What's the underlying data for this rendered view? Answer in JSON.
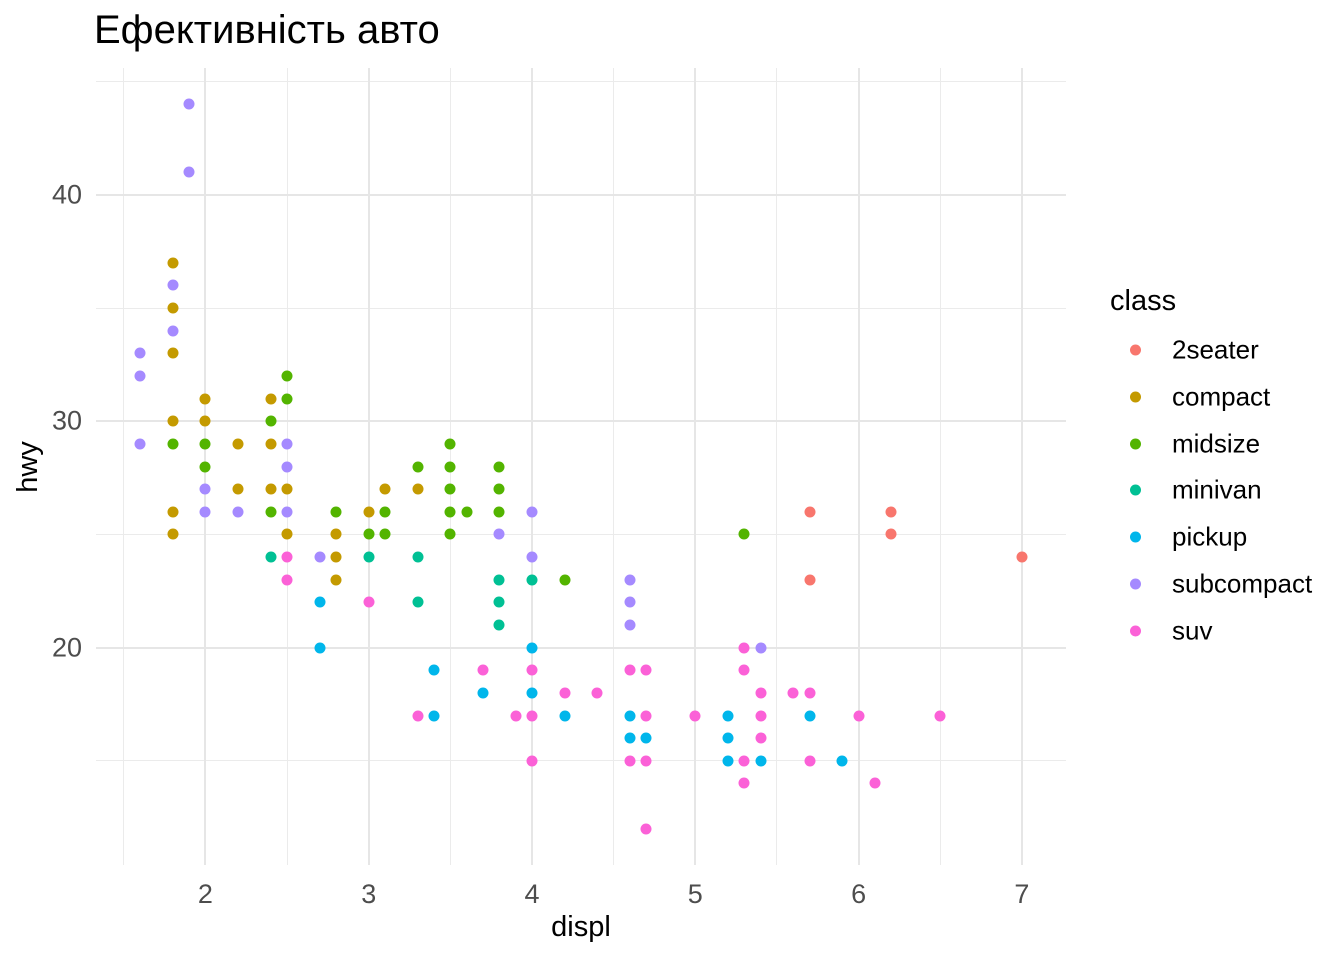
{
  "title": "Ефективність авто",
  "colors": {
    "background": "#ffffff",
    "grid_major": "#e6e6e6",
    "grid_minor": "#ebebeb",
    "axis_text": "#4d4d4d",
    "text": "#000000"
  },
  "chart_data": {
    "type": "scatter",
    "title": "Ефективність авто",
    "xlabel": "displ",
    "ylabel": "hwy",
    "xlim": [
      1.33,
      7.27
    ],
    "ylim": [
      10.4,
      45.6
    ],
    "x_major_ticks": [
      2,
      3,
      4,
      5,
      6,
      7
    ],
    "x_minor_ticks": [
      1.5,
      2.5,
      3.5,
      4.5,
      5.5,
      6.5
    ],
    "y_major_ticks": [
      20,
      30,
      40
    ],
    "y_minor_ticks": [
      15,
      25,
      35,
      45
    ],
    "grid": true,
    "legend_position": "right",
    "legend_title": "class",
    "series": [
      {
        "name": "2seater",
        "color": "#F8766D",
        "points": [
          [
            5.7,
            26
          ],
          [
            5.7,
            23
          ],
          [
            6.2,
            26
          ],
          [
            6.2,
            25
          ],
          [
            7,
            24
          ]
        ]
      },
      {
        "name": "compact",
        "color": "#C49A00",
        "points": [
          [
            1.8,
            37
          ],
          [
            1.8,
            35
          ],
          [
            1.8,
            33
          ],
          [
            1.8,
            30
          ],
          [
            1.8,
            26
          ],
          [
            1.8,
            25
          ],
          [
            2,
            31
          ],
          [
            2,
            30
          ],
          [
            2.2,
            29
          ],
          [
            2.2,
            27
          ],
          [
            2.4,
            31
          ],
          [
            2.4,
            29
          ],
          [
            2.4,
            27
          ],
          [
            2.5,
            27
          ],
          [
            2.5,
            25
          ],
          [
            2.8,
            25
          ],
          [
            2.8,
            24
          ],
          [
            2.8,
            23
          ],
          [
            3,
            26
          ],
          [
            3.1,
            27
          ],
          [
            3.3,
            27
          ]
        ]
      },
      {
        "name": "midsize",
        "color": "#53B400",
        "points": [
          [
            1.8,
            29
          ],
          [
            2,
            29
          ],
          [
            2,
            28
          ],
          [
            2.4,
            30
          ],
          [
            2.4,
            26
          ],
          [
            2.5,
            32
          ],
          [
            2.5,
            31
          ],
          [
            2.8,
            26
          ],
          [
            3,
            25
          ],
          [
            3.1,
            26
          ],
          [
            3.1,
            25
          ],
          [
            3.3,
            28
          ],
          [
            3.5,
            29
          ],
          [
            3.5,
            28
          ],
          [
            3.5,
            27
          ],
          [
            3.5,
            26
          ],
          [
            3.5,
            25
          ],
          [
            3.6,
            26
          ],
          [
            3.8,
            28
          ],
          [
            3.8,
            27
          ],
          [
            3.8,
            26
          ],
          [
            4.2,
            23
          ],
          [
            5.3,
            25
          ]
        ]
      },
      {
        "name": "minivan",
        "color": "#00C094",
        "points": [
          [
            2.4,
            24
          ],
          [
            3,
            24
          ],
          [
            3.3,
            24
          ],
          [
            3.3,
            22
          ],
          [
            3.8,
            23
          ],
          [
            3.8,
            22
          ],
          [
            3.8,
            21
          ],
          [
            4,
            23
          ]
        ]
      },
      {
        "name": "pickup",
        "color": "#00B6EB",
        "points": [
          [
            2.7,
            22
          ],
          [
            2.7,
            20
          ],
          [
            3.4,
            19
          ],
          [
            3.4,
            17
          ],
          [
            3.7,
            18
          ],
          [
            4,
            20
          ],
          [
            4,
            18
          ],
          [
            4.2,
            17
          ],
          [
            4.6,
            17
          ],
          [
            4.6,
            16
          ],
          [
            4.7,
            16
          ],
          [
            5.2,
            17
          ],
          [
            5.2,
            16
          ],
          [
            5.2,
            15
          ],
          [
            5.4,
            15
          ],
          [
            5.7,
            17
          ],
          [
            5.9,
            15
          ]
        ]
      },
      {
        "name": "subcompact",
        "color": "#A58AFF",
        "points": [
          [
            1.6,
            33
          ],
          [
            1.6,
            32
          ],
          [
            1.6,
            29
          ],
          [
            1.8,
            36
          ],
          [
            1.8,
            34
          ],
          [
            1.9,
            44
          ],
          [
            1.9,
            41
          ],
          [
            2,
            27
          ],
          [
            2,
            26
          ],
          [
            2.2,
            26
          ],
          [
            2.5,
            29
          ],
          [
            2.5,
            28
          ],
          [
            2.5,
            26
          ],
          [
            2.7,
            24
          ],
          [
            3.8,
            25
          ],
          [
            4,
            26
          ],
          [
            4,
            24
          ],
          [
            4.6,
            23
          ],
          [
            4.6,
            22
          ],
          [
            4.6,
            21
          ],
          [
            5.4,
            20
          ]
        ]
      },
      {
        "name": "suv",
        "color": "#FB61D7",
        "points": [
          [
            2.5,
            24
          ],
          [
            2.5,
            23
          ],
          [
            3,
            22
          ],
          [
            3.3,
            17
          ],
          [
            3.7,
            19
          ],
          [
            3.9,
            17
          ],
          [
            4,
            19
          ],
          [
            4,
            17
          ],
          [
            4,
            15
          ],
          [
            4.2,
            18
          ],
          [
            4.4,
            18
          ],
          [
            4.6,
            19
          ],
          [
            4.6,
            15
          ],
          [
            4.7,
            19
          ],
          [
            4.7,
            17
          ],
          [
            4.7,
            15
          ],
          [
            4.7,
            12
          ],
          [
            5,
            17
          ],
          [
            5.3,
            20
          ],
          [
            5.3,
            19
          ],
          [
            5.3,
            15
          ],
          [
            5.3,
            14
          ],
          [
            5.4,
            18
          ],
          [
            5.4,
            17
          ],
          [
            5.4,
            16
          ],
          [
            5.6,
            18
          ],
          [
            5.7,
            18
          ],
          [
            5.7,
            15
          ],
          [
            6,
            17
          ],
          [
            6.1,
            14
          ],
          [
            6.5,
            17
          ]
        ]
      }
    ]
  }
}
